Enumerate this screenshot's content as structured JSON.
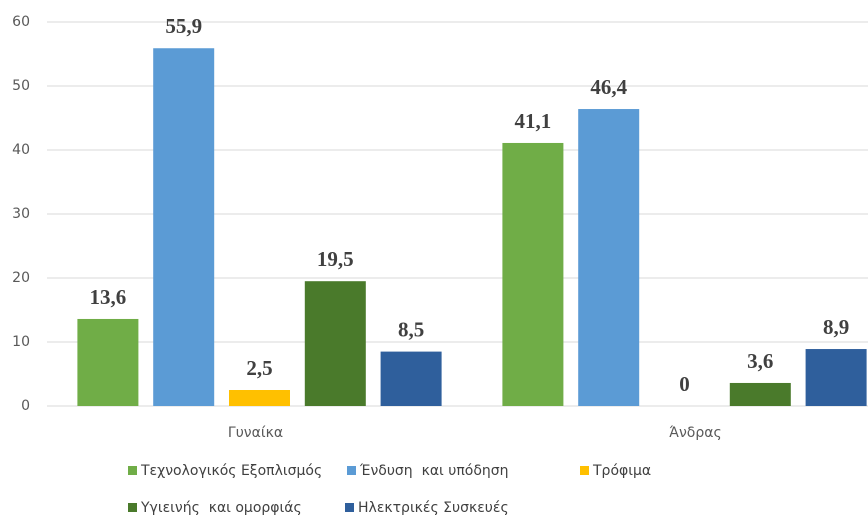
{
  "chart_data": {
    "type": "bar",
    "categories": [
      "Γυναίκα",
      "Άνδρας"
    ],
    "series": [
      {
        "name": "Τεχνολογικός Εξοπλισμός",
        "color": "#70ad47",
        "values": [
          13.6,
          41.1
        ],
        "value_labels": [
          "13,6",
          "41,1"
        ]
      },
      {
        "name": "Ένδυση  και υπόδηση",
        "color": "#5b9bd5",
        "values": [
          55.9,
          46.4
        ],
        "value_labels": [
          "55,9",
          "46,4"
        ]
      },
      {
        "name": "Τρόφιμα",
        "color": "#ffc000",
        "values": [
          2.5,
          0
        ],
        "value_labels": [
          "2,5",
          "0"
        ]
      },
      {
        "name": "Υγιεινής  και ομορφιάς",
        "color": "#4a7a2b",
        "values": [
          19.5,
          3.6
        ],
        "value_labels": [
          "19,5",
          "3,6"
        ]
      },
      {
        "name": "Ηλεκτρικές Συσκευές",
        "color": "#2f5f9c",
        "values": [
          8.5,
          8.9
        ],
        "value_labels": [
          "8,5",
          "8,9"
        ]
      }
    ],
    "ylim": [
      0,
      60
    ],
    "yticks": [
      0,
      10,
      20,
      30,
      40,
      50,
      60
    ],
    "grid": true,
    "legend": "bottom"
  }
}
